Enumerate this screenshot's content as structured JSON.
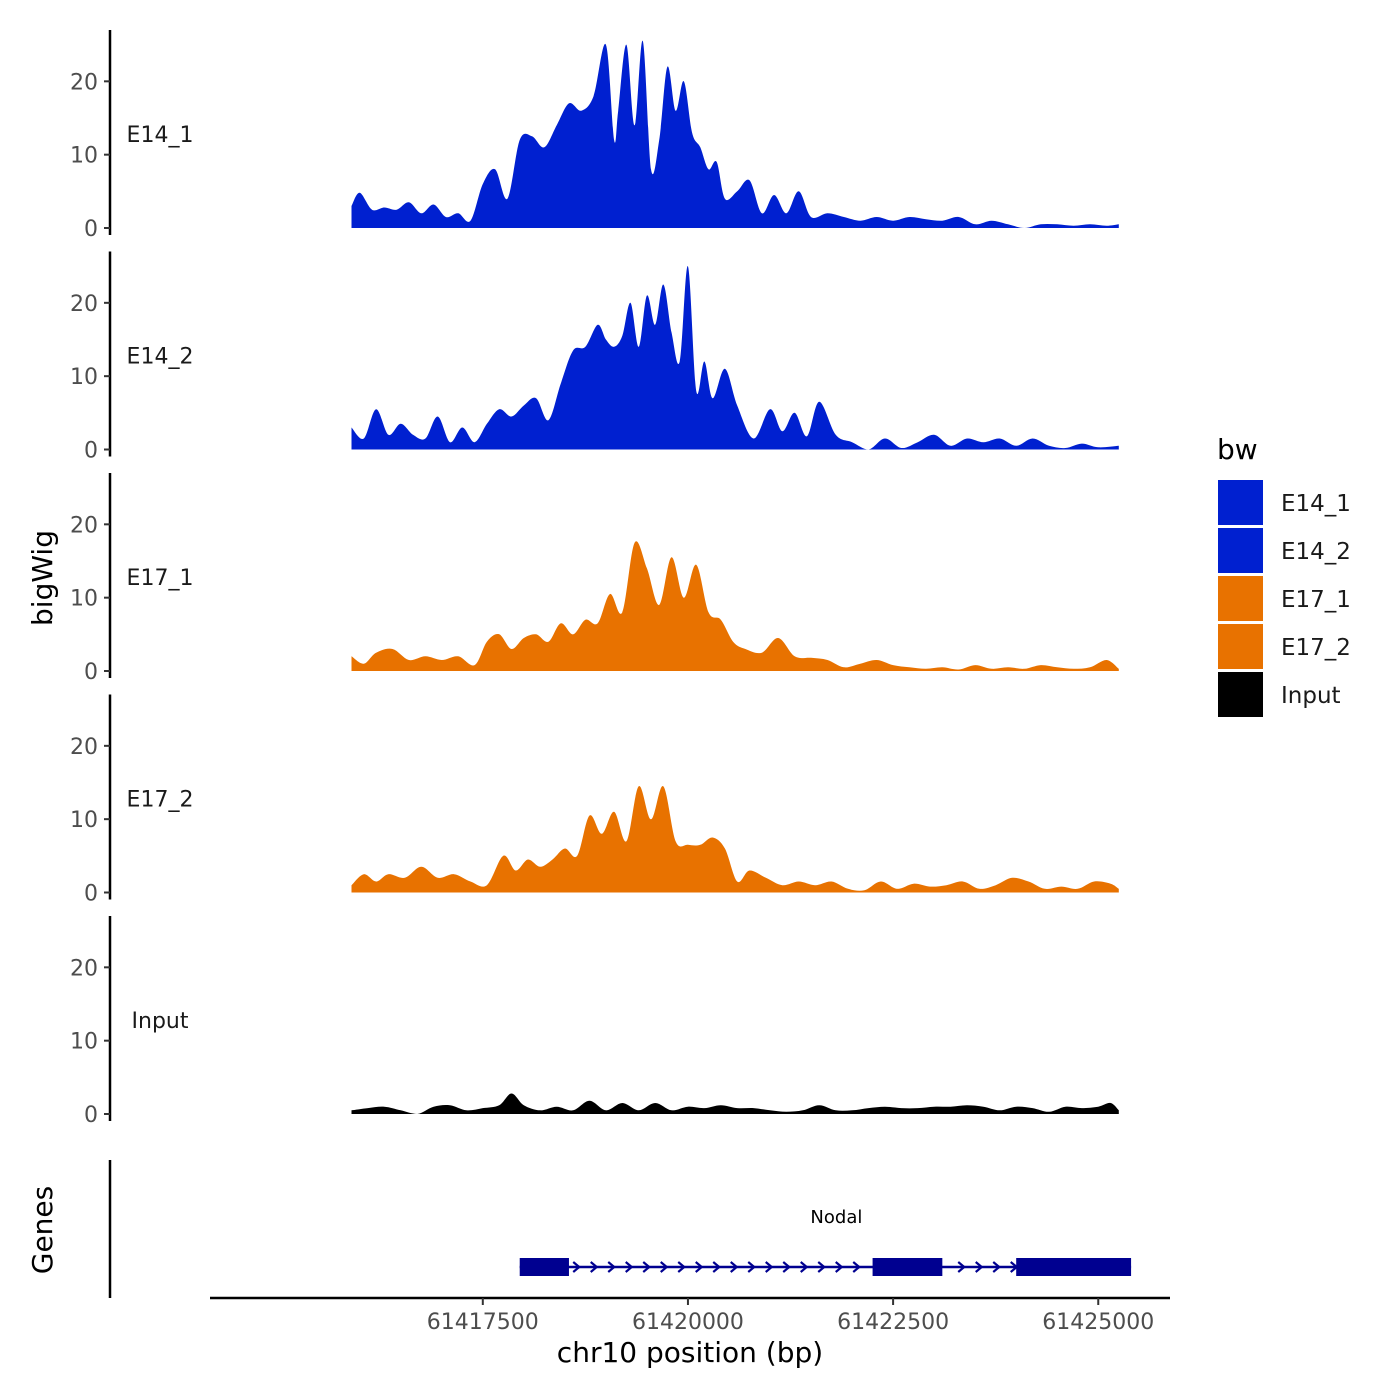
{
  "chart_data": {
    "type": "area",
    "x_axis": {
      "title": "chr10 position (bp)",
      "range": [
        61414200,
        61425850
      ],
      "ticks": [
        61417500,
        61420000,
        61422500,
        61425000
      ],
      "tick_labels": [
        "61417500",
        "61420000",
        "61422500",
        "61425000"
      ]
    },
    "y_axis": {
      "title": "bigWig",
      "range": [
        0,
        27
      ],
      "ticks": [
        0,
        10,
        20
      ],
      "tick_labels": [
        "0",
        "10",
        "20"
      ]
    },
    "gene_track_title": "Genes",
    "legend": {
      "title": "bw",
      "entries": [
        {
          "label": "E14_1",
          "color": "#0020d0"
        },
        {
          "label": "E14_2",
          "color": "#0020d0"
        },
        {
          "label": "E17_1",
          "color": "#e87200"
        },
        {
          "label": "E17_2",
          "color": "#e87200"
        },
        {
          "label": "Input",
          "color": "#000000"
        }
      ]
    },
    "series": [
      {
        "name": "E14_1",
        "color": "#0020d0",
        "x": [
          61415900,
          61416000,
          61416150,
          61416300,
          61416450,
          61416600,
          61416750,
          61416900,
          61417050,
          61417200,
          61417350,
          61417500,
          61417650,
          61417800,
          61417950,
          61418100,
          61418250,
          61418400,
          61418550,
          61418700,
          61418850,
          61419000,
          61419100,
          61419150,
          61419250,
          61419350,
          61419450,
          61419550,
          61419650,
          61419750,
          61419850,
          61419950,
          61420050,
          61420150,
          61420250,
          61420350,
          61420450,
          61420600,
          61420750,
          61420900,
          61421050,
          61421200,
          61421350,
          61421500,
          61421700,
          61421900,
          61422100,
          61422300,
          61422500,
          61422700,
          61422900,
          61423100,
          61423300,
          61423500,
          61423700,
          61423900,
          61424100,
          61424300,
          61424500,
          61424700,
          61424900,
          61425100,
          61425250
        ],
        "values": [
          3,
          4.8,
          2.5,
          2.8,
          2.5,
          3.5,
          2,
          3.2,
          1.5,
          2,
          1,
          6,
          8,
          4,
          12,
          12.5,
          11,
          14,
          17,
          16,
          18,
          25,
          12,
          16,
          25,
          14,
          25.5,
          8,
          12,
          22,
          16,
          20,
          13,
          11,
          8,
          9,
          4,
          5,
          6.5,
          2,
          4.5,
          2,
          5,
          1.5,
          2,
          1.5,
          1,
          1.5,
          1,
          1.5,
          1.2,
          1,
          1.5,
          0.5,
          1,
          0.5,
          0,
          0.5,
          0.5,
          0.3,
          0.5,
          0.3,
          0.5
        ]
      },
      {
        "name": "E14_2",
        "color": "#0020d0",
        "x": [
          61415900,
          61416050,
          61416200,
          61416350,
          61416500,
          61416650,
          61416800,
          61416950,
          61417100,
          61417250,
          61417400,
          61417550,
          61417700,
          61417850,
          61418000,
          61418150,
          61418300,
          61418450,
          61418600,
          61418750,
          61418900,
          61419000,
          61419100,
          61419200,
          61419300,
          61419400,
          61419500,
          61419600,
          61419700,
          61419800,
          61419900,
          61420000,
          61420100,
          61420200,
          61420300,
          61420450,
          61420600,
          61420800,
          61421000,
          61421150,
          61421300,
          61421450,
          61421600,
          61421800,
          61422000,
          61422200,
          61422400,
          61422600,
          61422800,
          61423000,
          61423200,
          61423400,
          61423600,
          61423800,
          61424000,
          61424200,
          61424400,
          61424600,
          61424800,
          61425000,
          61425250
        ],
        "values": [
          3,
          1.5,
          5.5,
          2,
          3.5,
          2,
          1.5,
          4.5,
          1,
          3,
          1,
          3.5,
          5.5,
          4.5,
          6,
          7,
          4,
          9,
          13.5,
          14,
          17,
          15,
          14,
          15.5,
          20,
          14,
          21,
          17,
          22.5,
          16,
          12,
          25,
          8,
          12,
          7,
          11,
          6,
          1.5,
          5.5,
          2.5,
          5,
          1.8,
          6.5,
          2,
          1,
          0,
          1.5,
          0.2,
          1,
          2,
          0.5,
          1.5,
          1,
          1.5,
          0.5,
          1.5,
          0.5,
          0.2,
          0.8,
          0.3,
          0.5
        ]
      },
      {
        "name": "E17_1",
        "color": "#e87200",
        "x": [
          61415900,
          61416050,
          61416200,
          61416400,
          61416600,
          61416800,
          61417000,
          61417200,
          61417400,
          61417550,
          61417700,
          61417850,
          61418000,
          61418150,
          61418300,
          61418450,
          61418600,
          61418750,
          61418900,
          61419050,
          61419200,
          61419350,
          61419500,
          61419650,
          61419800,
          61419950,
          61420100,
          61420250,
          61420400,
          61420550,
          61420700,
          61420900,
          61421100,
          61421300,
          61421500,
          61421700,
          61421900,
          61422100,
          61422300,
          61422500,
          61422700,
          61422900,
          61423100,
          61423300,
          61423500,
          61423700,
          61423900,
          61424100,
          61424300,
          61424500,
          61424700,
          61424900,
          61425100,
          61425250
        ],
        "values": [
          2,
          1,
          2.5,
          3,
          1.5,
          2,
          1.5,
          2,
          0.8,
          4,
          5,
          3,
          4.5,
          5,
          4,
          6.5,
          5,
          7,
          6.5,
          10.5,
          8,
          17.5,
          14,
          9,
          15.5,
          10,
          14.5,
          8,
          7,
          4,
          3,
          2.5,
          4.5,
          2,
          1.8,
          1.5,
          0.5,
          1,
          1.5,
          0.8,
          0.5,
          0.3,
          0.5,
          0.2,
          0.8,
          0.3,
          0.5,
          0.3,
          0.8,
          0.5,
          0.3,
          0.5,
          1.5,
          0.3
        ]
      },
      {
        "name": "E17_2",
        "color": "#e87200",
        "x": [
          61415900,
          61416050,
          61416200,
          61416350,
          61416550,
          61416750,
          61416950,
          61417150,
          61417350,
          61417550,
          61417750,
          61417900,
          61418050,
          61418200,
          61418350,
          61418500,
          61418650,
          61418800,
          61418950,
          61419100,
          61419250,
          61419400,
          61419550,
          61419700,
          61419850,
          61420000,
          61420150,
          61420300,
          61420450,
          61420600,
          61420750,
          61420950,
          61421150,
          61421350,
          61421550,
          61421750,
          61421950,
          61422150,
          61422350,
          61422550,
          61422750,
          61422950,
          61423150,
          61423350,
          61423550,
          61423750,
          61423950,
          61424150,
          61424350,
          61424550,
          61424750,
          61424950,
          61425150,
          61425250
        ],
        "values": [
          1,
          2.5,
          1.5,
          2.5,
          2,
          3.5,
          2,
          2.5,
          1.5,
          1,
          5,
          3,
          4.5,
          3.5,
          4.5,
          6,
          5,
          10.5,
          8,
          11,
          7,
          14.5,
          10,
          14.5,
          7,
          6.5,
          6.5,
          7.5,
          6,
          1.5,
          3,
          2,
          1,
          1.5,
          1,
          1.5,
          0.5,
          0.3,
          1.5,
          0.5,
          1.2,
          0.8,
          1,
          1.5,
          0.5,
          1,
          2,
          1.5,
          0.5,
          0.8,
          0.5,
          1.5,
          1.2,
          0.5
        ]
      },
      {
        "name": "Input",
        "color": "#000000",
        "x": [
          61415900,
          61416100,
          61416300,
          61416500,
          61416700,
          61416900,
          61417100,
          61417300,
          61417500,
          61417700,
          61417850,
          61418000,
          61418200,
          61418400,
          61418600,
          61418800,
          61419000,
          61419200,
          61419400,
          61419600,
          61419800,
          61420000,
          61420200,
          61420400,
          61420600,
          61420800,
          61421000,
          61421200,
          61421400,
          61421600,
          61421800,
          61422000,
          61422200,
          61422400,
          61422600,
          61422800,
          61423000,
          61423200,
          61423400,
          61423600,
          61423800,
          61424000,
          61424200,
          61424400,
          61424600,
          61424800,
          61425000,
          61425150,
          61425250
        ],
        "values": [
          0.5,
          0.8,
          1,
          0.5,
          0,
          1,
          1.2,
          0.5,
          0.8,
          1.2,
          2.8,
          1.2,
          0.5,
          1,
          0.5,
          1.8,
          0.5,
          1.5,
          0.5,
          1.5,
          0.5,
          1,
          0.8,
          1.2,
          0.8,
          0.8,
          0.5,
          0.3,
          0.5,
          1.2,
          0.5,
          0.5,
          0.8,
          1,
          0.8,
          0.8,
          1,
          1,
          1.2,
          1,
          0.5,
          1,
          0.8,
          0.3,
          1,
          0.8,
          1,
          1.5,
          0.5
        ]
      }
    ],
    "genes": [
      {
        "name": "Nodal",
        "start": 61417950,
        "end": 61425400,
        "strand": "+",
        "exons": [
          [
            61417950,
            61418550
          ],
          [
            61422250,
            61423100
          ],
          [
            61424000,
            61425400
          ]
        ],
        "color": "#000090"
      }
    ]
  }
}
